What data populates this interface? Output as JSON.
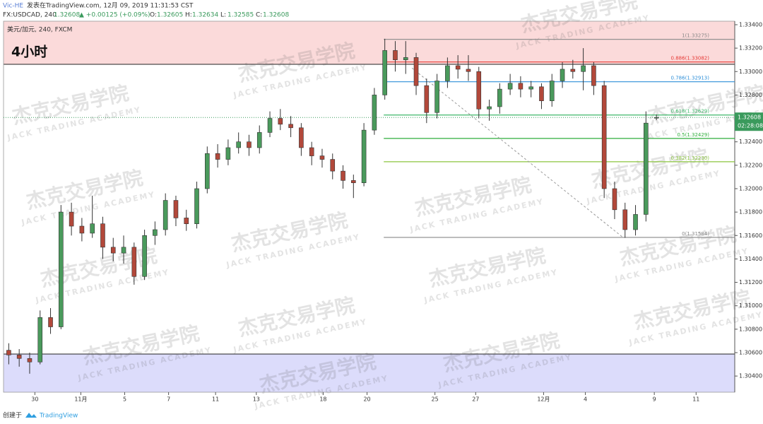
{
  "header": {
    "author": "Vic-HE",
    "published": "发表在TradingView.com, 12月 09, 2019 11:31:53 CST",
    "symbol": "FX:USDCAD, 240",
    "change": "▲ +0.00125 (+0.09%)",
    "ohlc": [
      {
        "key": "O:",
        "value": "1.32605"
      },
      {
        "key": "H:",
        "value": "1.32634"
      },
      {
        "key": "L:",
        "value": "1.32585"
      },
      {
        "key": "C:",
        "value": "1.32608"
      }
    ]
  },
  "chart_data": {
    "type": "candlestick",
    "title": "4小时",
    "subtitle": "美元/加元, 240, FXCM",
    "up_color": "#4a9a5c",
    "down_color": "#b2483a",
    "candles": [
      [
        1.3062,
        1.3068,
        1.305,
        1.3058
      ],
      [
        1.3058,
        1.3063,
        1.3048,
        1.3055
      ],
      [
        1.3055,
        1.306,
        1.3042,
        1.3052
      ],
      [
        1.3052,
        1.3096,
        1.305,
        1.309
      ],
      [
        1.309,
        1.3098,
        1.3076,
        1.3082
      ],
      [
        1.3082,
        1.3186,
        1.308,
        1.318
      ],
      [
        1.318,
        1.3188,
        1.316,
        1.3168
      ],
      [
        1.3168,
        1.3175,
        1.3155,
        1.3162
      ],
      [
        1.3162,
        1.3194,
        1.3158,
        1.317
      ],
      [
        1.317,
        1.3176,
        1.314,
        1.315
      ],
      [
        1.315,
        1.3158,
        1.3138,
        1.3145
      ],
      [
        1.3145,
        1.316,
        1.3136,
        1.315
      ],
      [
        1.315,
        1.3154,
        1.3118,
        1.3125
      ],
      [
        1.3125,
        1.3165,
        1.3122,
        1.316
      ],
      [
        1.316,
        1.3172,
        1.3152,
        1.3165
      ],
      [
        1.3165,
        1.3196,
        1.316,
        1.319
      ],
      [
        1.319,
        1.3194,
        1.3168,
        1.3175
      ],
      [
        1.3175,
        1.3182,
        1.3164,
        1.317
      ],
      [
        1.317,
        1.3206,
        1.3166,
        1.32
      ],
      [
        1.32,
        1.3236,
        1.3196,
        1.323
      ],
      [
        1.323,
        1.3238,
        1.3218,
        1.3225
      ],
      [
        1.3225,
        1.3242,
        1.322,
        1.3235
      ],
      [
        1.3235,
        1.3248,
        1.323,
        1.324
      ],
      [
        1.324,
        1.3246,
        1.3228,
        1.3235
      ],
      [
        1.3235,
        1.3254,
        1.323,
        1.3248
      ],
      [
        1.3248,
        1.3266,
        1.3244,
        1.326
      ],
      [
        1.326,
        1.3268,
        1.325,
        1.3255
      ],
      [
        1.3255,
        1.3262,
        1.3244,
        1.3252
      ],
      [
        1.3252,
        1.3256,
        1.3228,
        1.3235
      ],
      [
        1.3235,
        1.324,
        1.322,
        1.3228
      ],
      [
        1.3228,
        1.3234,
        1.3218,
        1.3225
      ],
      [
        1.3225,
        1.323,
        1.3208,
        1.3215
      ],
      [
        1.3215,
        1.322,
        1.32,
        1.3207
      ],
      [
        1.3207,
        1.3212,
        1.3192,
        1.3205
      ],
      [
        1.3205,
        1.3256,
        1.3202,
        1.325
      ],
      [
        1.325,
        1.3286,
        1.3246,
        1.328
      ],
      [
        1.328,
        1.3328,
        1.3276,
        1.3318
      ],
      [
        1.3318,
        1.3326,
        1.33,
        1.331
      ],
      [
        1.331,
        1.3326,
        1.3298,
        1.3312
      ],
      [
        1.3312,
        1.3316,
        1.328,
        1.3288
      ],
      [
        1.3288,
        1.3294,
        1.3256,
        1.3265
      ],
      [
        1.3265,
        1.3298,
        1.326,
        1.3292
      ],
      [
        1.3292,
        1.3312,
        1.3286,
        1.3305
      ],
      [
        1.3305,
        1.3314,
        1.3294,
        1.3302
      ],
      [
        1.3302,
        1.3314,
        1.3292,
        1.33
      ],
      [
        1.33,
        1.3304,
        1.326,
        1.3268
      ],
      [
        1.3268,
        1.3276,
        1.3258,
        1.327
      ],
      [
        1.327,
        1.329,
        1.3264,
        1.3285
      ],
      [
        1.3285,
        1.3298,
        1.328,
        1.329
      ],
      [
        1.329,
        1.3296,
        1.3278,
        1.3285
      ],
      [
        1.3285,
        1.3292,
        1.3278,
        1.3287
      ],
      [
        1.3287,
        1.329,
        1.3268,
        1.3275
      ],
      [
        1.3275,
        1.3298,
        1.327,
        1.3292
      ],
      [
        1.3292,
        1.3308,
        1.3286,
        1.3302
      ],
      [
        1.3302,
        1.331,
        1.3294,
        1.33
      ],
      [
        1.33,
        1.332,
        1.3284,
        1.3305
      ],
      [
        1.3305,
        1.3308,
        1.328,
        1.3288
      ],
      [
        1.3288,
        1.3292,
        1.3192,
        1.32
      ],
      [
        1.32,
        1.3206,
        1.3174,
        1.3182
      ],
      [
        1.3182,
        1.3188,
        1.3158,
        1.3165
      ],
      [
        1.3165,
        1.3186,
        1.316,
        1.3178
      ],
      [
        1.3178,
        1.3266,
        1.3172,
        1.3256
      ],
      [
        1.32605,
        1.32634,
        1.32585,
        1.32608
      ]
    ],
    "xlim": [
      0,
      70
    ],
    "ylim": [
      1.30262,
      1.3343
    ],
    "xticks": [
      {
        "value": 3.0,
        "label": "30"
      },
      {
        "value": 7.4,
        "label": "11月"
      },
      {
        "value": 11.6,
        "label": "5"
      },
      {
        "value": 15.8,
        "label": "7"
      },
      {
        "value": 20.3,
        "label": "11"
      },
      {
        "value": 24.2,
        "label": "13"
      },
      {
        "value": 30.6,
        "label": "18"
      },
      {
        "value": 34.8,
        "label": "20"
      },
      {
        "value": 41.3,
        "label": "25"
      },
      {
        "value": 45.2,
        "label": "27"
      },
      {
        "value": 51.7,
        "label": "12月"
      },
      {
        "value": 55.7,
        "label": "4"
      },
      {
        "value": 62.3,
        "label": "9"
      },
      {
        "value": 66.3,
        "label": "11"
      }
    ],
    "yticks": [
      {
        "value": 1.304,
        "label": "1.30400"
      },
      {
        "value": 1.306,
        "label": "1.30600"
      },
      {
        "value": 1.308,
        "label": "1.30800"
      },
      {
        "value": 1.31,
        "label": "1.31000"
      },
      {
        "value": 1.312,
        "label": "1.31200"
      },
      {
        "value": 1.314,
        "label": "1.31400"
      },
      {
        "value": 1.316,
        "label": "1.31600"
      },
      {
        "value": 1.318,
        "label": "1.31800"
      },
      {
        "value": 1.32,
        "label": "1.32000"
      },
      {
        "value": 1.322,
        "label": "1.32200"
      },
      {
        "value": 1.324,
        "label": "1.32400"
      },
      {
        "value": 1.326,
        "label": "1.32600"
      },
      {
        "value": 1.328,
        "label": "1.32800"
      },
      {
        "value": 1.33,
        "label": "1.33000"
      },
      {
        "value": 1.332,
        "label": "1.33200"
      },
      {
        "value": 1.334,
        "label": "1.33400"
      }
    ],
    "zones": [
      {
        "from": 1.33062,
        "to": 1.3343,
        "color": "#fbdada"
      },
      {
        "from": 1.30262,
        "to": 1.30588,
        "color": "#dcdcfb"
      }
    ],
    "fib_start": 36.4,
    "fib_levels": [
      {
        "value": 1.33275,
        "label": "1(1.33275)",
        "color": "#888888"
      },
      {
        "value": 1.33082,
        "label": "0.886(1.33082)",
        "color": "#e53935"
      },
      {
        "value": 1.32913,
        "label": "0.786(1.32913)",
        "color": "#2e8fd8"
      },
      {
        "value": 1.32629,
        "label": "0.618(1.32629)",
        "color": "#3fb86a"
      },
      {
        "value": 1.32429,
        "label": "0.5(1.32429)",
        "color": "#2fae3b"
      },
      {
        "value": 1.3223,
        "label": "0.382(1.32230)",
        "color": "#8cc63f"
      },
      {
        "value": 1.31584,
        "label": "0(1.31584)",
        "color": "#888888"
      }
    ],
    "trendline": {
      "x": [
        39.1,
        59.3
      ],
      "y": [
        1.3303,
        1.31584
      ]
    },
    "last_price": 1.32608,
    "countdown": "02:28:08"
  },
  "watermark": {
    "cn": "杰克交易学院",
    "en": "JACK TRADING ACADEMY"
  },
  "footer": {
    "created": "创建于",
    "brand": "TradingView"
  }
}
